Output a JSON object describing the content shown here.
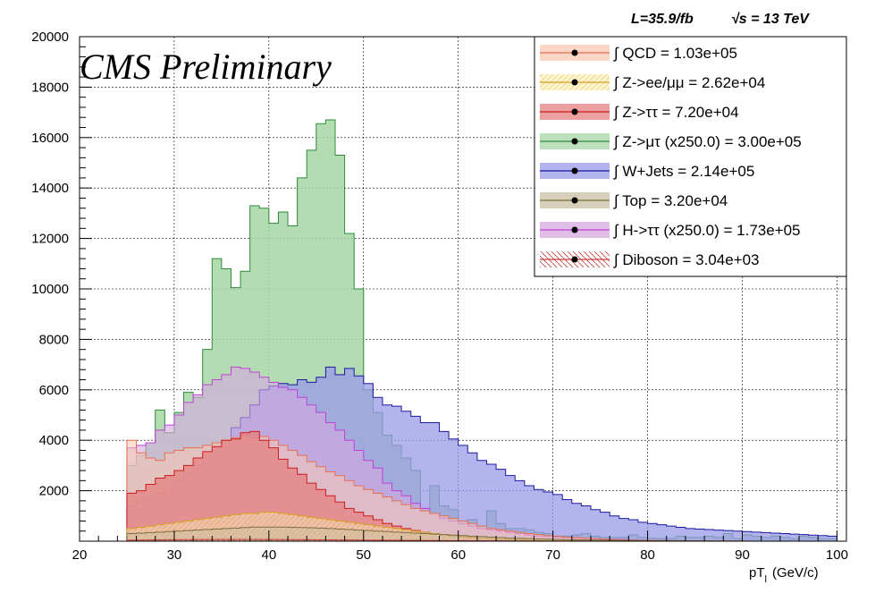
{
  "chart_data": {
    "type": "area",
    "title": "",
    "header": {
      "lumi": "L=35.9/fb",
      "energy": "√s = 13 TeV",
      "label": "CMS Preliminary"
    },
    "xlabel": "pT",
    "xlabel_sub": "l",
    "xlabel_unit": "(GeV/c)",
    "ylabel": "",
    "xlim": [
      20,
      101
    ],
    "ylim": [
      0,
      20000
    ],
    "x_ticks": [
      "20",
      "30",
      "40",
      "50",
      "60",
      "70",
      "80",
      "90",
      "100"
    ],
    "y_ticks": [
      "2000",
      "4000",
      "6000",
      "8000",
      "10000",
      "12000",
      "14000",
      "16000",
      "18000",
      "20000"
    ],
    "grid": true,
    "legend_position": "top-right",
    "bin_start": 20,
    "bin_width": 1,
    "series": [
      {
        "name": "Z->μτ (x250.0)",
        "legend": "∫ Z->μτ (x250.0) = 3.00e+05",
        "fill": "#a6d6a6",
        "line": "#2e8b3a",
        "values": [
          0,
          0,
          0,
          0,
          0,
          3000,
          3400,
          3900,
          5200,
          4300,
          5100,
          5900,
          5700,
          7600,
          11200,
          10800,
          10050,
          10700,
          13300,
          13200,
          12600,
          13050,
          12500,
          14400,
          15500,
          16550,
          16700,
          15300,
          12200,
          10000,
          6000,
          5100,
          4200,
          3800,
          3300,
          2800,
          1300,
          2200,
          1400,
          1250,
          800,
          850,
          600,
          1200,
          700,
          500,
          500,
          450,
          350,
          300,
          200,
          200,
          250,
          300,
          200,
          150,
          150,
          150,
          250,
          150,
          120,
          100,
          100,
          200,
          150,
          150,
          200,
          150,
          300,
          100,
          250,
          200,
          150,
          200,
          150,
          100,
          200,
          150,
          100,
          100,
          0
        ]
      },
      {
        "name": "W+Jets",
        "legend": "∫ W+Jets = 2.14e+05",
        "fill": "#9a9ae8",
        "line": "#1a1aa0",
        "values": [
          0,
          0,
          0,
          0,
          0,
          1400,
          1600,
          1700,
          1900,
          2100,
          2400,
          2700,
          3000,
          3300,
          3700,
          4000,
          4500,
          4900,
          5400,
          6000,
          6150,
          6250,
          6200,
          6400,
          6300,
          6500,
          6900,
          6600,
          6850,
          6550,
          6250,
          5700,
          5400,
          5350,
          5150,
          4950,
          4700,
          4700,
          4350,
          4050,
          3800,
          3500,
          3200,
          3050,
          2850,
          2600,
          2400,
          2200,
          2050,
          1950,
          1850,
          1650,
          1500,
          1400,
          1250,
          1150,
          1000,
          900,
          850,
          750,
          700,
          650,
          600,
          550,
          500,
          480,
          460,
          440,
          420,
          400,
          380,
          360,
          340,
          320,
          300,
          280,
          260,
          240,
          220,
          200,
          0
        ]
      },
      {
        "name": "H->ττ (x250.0)",
        "legend": "∫ H->ττ (x250.0) = 1.73e+05",
        "fill": "#d6a8e0",
        "line": "#c040d8",
        "values": [
          0,
          0,
          0,
          0,
          0,
          3700,
          3800,
          3900,
          4400,
          4600,
          5000,
          5500,
          5800,
          6200,
          6400,
          6600,
          6900,
          6850,
          6700,
          6500,
          6300,
          6100,
          6000,
          5700,
          5400,
          5100,
          4700,
          4400,
          4000,
          3600,
          3200,
          2900,
          2300,
          2000,
          1800,
          1500,
          1300,
          1100,
          900,
          800,
          700,
          600,
          500,
          450,
          400,
          350,
          300,
          250,
          200,
          180,
          160,
          140,
          120,
          100,
          90,
          80,
          70,
          60,
          50,
          40,
          30,
          25,
          20,
          15,
          10,
          10,
          8,
          6,
          5,
          4,
          3,
          2,
          1,
          1,
          1,
          1,
          1,
          1,
          1,
          1,
          0
        ]
      },
      {
        "name": "QCD",
        "legend": "∫ QCD = 1.03e+05",
        "fill": "#f8c8b4",
        "line": "#e87050",
        "values": [
          0,
          0,
          0,
          0,
          0,
          4000,
          3500,
          3300,
          3200,
          3500,
          3600,
          3700,
          3700,
          3800,
          3900,
          4000,
          4100,
          4200,
          4100,
          4150,
          4000,
          3800,
          3600,
          3400,
          3150,
          2950,
          2750,
          2600,
          2400,
          2200,
          2050,
          1900,
          1750,
          1600,
          1450,
          1300,
          1200,
          1100,
          1000,
          900,
          800,
          700,
          600,
          500,
          450,
          400,
          350,
          300,
          260,
          220,
          190,
          160,
          140,
          120,
          100,
          80,
          60,
          50,
          40,
          30,
          25,
          20,
          15,
          10,
          10,
          8,
          6,
          5,
          4,
          3,
          2,
          1,
          1,
          1,
          1,
          1,
          1,
          1,
          1,
          1,
          0
        ]
      },
      {
        "name": "Z->ττ",
        "legend": "∫ Z->ττ = 7.20e+04",
        "fill": "#e58080",
        "line": "#cc1c1c",
        "values": [
          0,
          0,
          0,
          0,
          0,
          1900,
          2000,
          2250,
          2500,
          2600,
          2800,
          3000,
          3300,
          3550,
          3750,
          4000,
          4050,
          4300,
          4350,
          4000,
          3700,
          3250,
          2900,
          2650,
          2300,
          2050,
          1800,
          1550,
          1300,
          1150,
          1000,
          850,
          700,
          600,
          500,
          420,
          350,
          290,
          240,
          200,
          160,
          130,
          100,
          80,
          60,
          50,
          40,
          30,
          25,
          20,
          15,
          10,
          8,
          6,
          5,
          4,
          3,
          2,
          1,
          1,
          1,
          1,
          1,
          1,
          1,
          1,
          1,
          1,
          1,
          1,
          1,
          1,
          1,
          1,
          1,
          1,
          1,
          1,
          1,
          1,
          0
        ]
      },
      {
        "name": "Z->ee/μμ",
        "legend": "∫ Z->ee/μμ = 2.62e+04",
        "fill": "#fbf2c0",
        "line": "#d8a020",
        "values": [
          0,
          0,
          0,
          0,
          0,
          500,
          550,
          600,
          650,
          700,
          750,
          800,
          850,
          900,
          950,
          1000,
          1050,
          1100,
          1100,
          1150,
          1150,
          1100,
          1050,
          1000,
          950,
          900,
          850,
          800,
          750,
          700,
          650,
          600,
          550,
          500,
          450,
          400,
          350,
          300,
          260,
          220,
          190,
          160,
          130,
          110,
          90,
          70,
          60,
          50,
          40,
          30,
          25,
          20,
          15,
          10,
          8,
          6,
          5,
          4,
          3,
          2,
          1,
          1,
          1,
          1,
          1,
          1,
          1,
          1,
          1,
          1,
          1,
          1,
          1,
          1,
          1,
          1,
          1,
          1,
          1,
          1,
          0
        ]
      },
      {
        "name": "Top",
        "legend": "∫ Top = 3.20e+04",
        "fill": "#c8c0a0",
        "line": "#7a7040",
        "values": [
          0,
          0,
          0,
          0,
          0,
          300,
          320,
          340,
          360,
          380,
          400,
          420,
          440,
          460,
          480,
          500,
          520,
          540,
          560,
          560,
          560,
          560,
          550,
          540,
          530,
          520,
          500,
          480,
          460,
          440,
          420,
          400,
          380,
          360,
          340,
          320,
          300,
          280,
          260,
          240,
          220,
          200,
          180,
          160,
          140,
          120,
          110,
          100,
          90,
          80,
          70,
          60,
          55,
          50,
          45,
          40,
          35,
          30,
          25,
          20,
          18,
          16,
          14,
          12,
          10,
          8,
          6,
          5,
          4,
          3,
          2,
          1,
          1,
          1,
          1,
          1,
          1,
          1,
          1,
          1,
          0
        ]
      },
      {
        "name": "Diboson",
        "legend": "∫ Diboson = 3.04e+03",
        "fill": "none",
        "line": "#c84040",
        "values": [
          0,
          0,
          0,
          0,
          0,
          40,
          45,
          50,
          55,
          60,
          62,
          64,
          66,
          68,
          70,
          70,
          70,
          70,
          70,
          68,
          66,
          64,
          62,
          60,
          58,
          55,
          52,
          50,
          48,
          45,
          42,
          40,
          38,
          35,
          32,
          30,
          28,
          26,
          24,
          22,
          20,
          18,
          16,
          14,
          12,
          10,
          9,
          8,
          7,
          6,
          5,
          4,
          3,
          3,
          2,
          2,
          2,
          1,
          1,
          1,
          1,
          1,
          1,
          1,
          1,
          1,
          1,
          1,
          1,
          1,
          1,
          1,
          1,
          1,
          1,
          1,
          1,
          1,
          1,
          1,
          0
        ]
      }
    ]
  }
}
